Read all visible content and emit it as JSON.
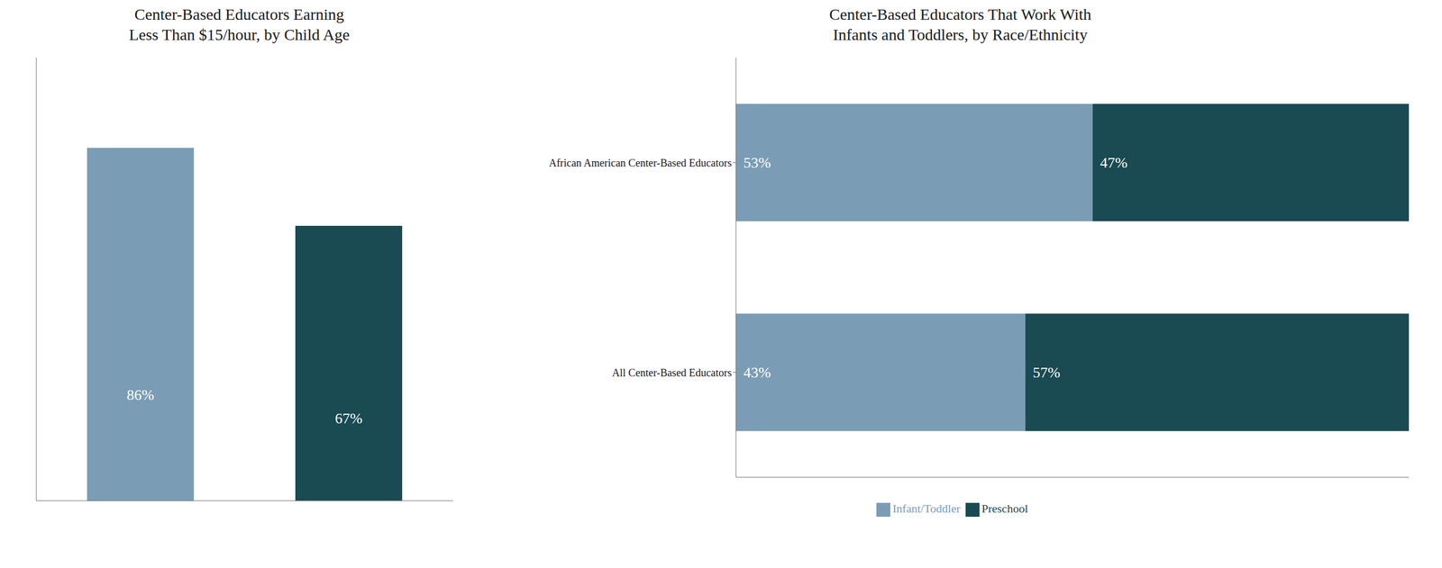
{
  "chart_data": [
    {
      "type": "bar",
      "title": "Center-Based Educators Earning\nLess Than $15/hour, by Child Age",
      "categories": [
        null,
        null
      ],
      "values": [
        86,
        67
      ],
      "value_labels": [
        "86%",
        "67%"
      ],
      "colors": [
        "#7a9db5",
        "#1a4a52"
      ],
      "ylim": [
        0,
        108
      ],
      "data_labels": true,
      "tick_labels": false
    },
    {
      "type": "bar",
      "title": "Center-Based Educators That Work With\nInfants and Toddlers, by Race/Ethnicity",
      "orientation": "horizontal",
      "stacked": true,
      "categories": [
        "African American Center-Based Educators",
        "All Center-Based Educators"
      ],
      "series": [
        {
          "name": "Infant/Toddler",
          "color": "#7a9db5",
          "values": [
            53,
            43
          ],
          "value_labels": [
            "53%",
            "43%"
          ]
        },
        {
          "name": "Preschool",
          "color": "#1a4a52",
          "values": [
            47,
            57
          ],
          "value_labels": [
            "47%",
            "57%"
          ]
        }
      ],
      "xlim": [
        0,
        100
      ],
      "data_labels": true,
      "tick_labels": "y",
      "legend": "bottom"
    }
  ]
}
